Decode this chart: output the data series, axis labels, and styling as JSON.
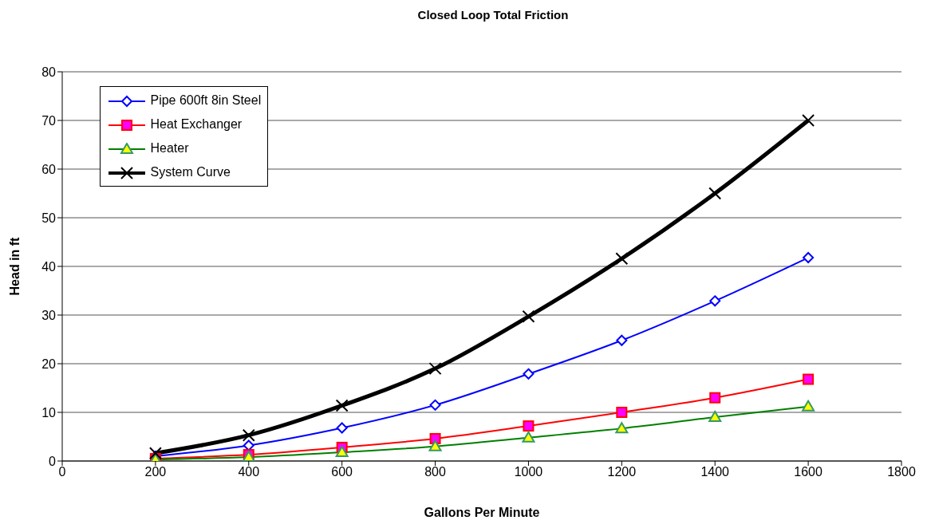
{
  "chart_data": {
    "type": "line",
    "title": "Closed Loop Total Friction",
    "xlabel": "Gallons Per Minute",
    "ylabel": "Head in ft",
    "x": [
      200,
      400,
      600,
      800,
      1000,
      1200,
      1400,
      1600
    ],
    "series": [
      {
        "name": "Pipe 600ft 8in Steel",
        "color": "#0000ff",
        "marker": "diamond",
        "values": [
          1.0,
          3.2,
          6.8,
          11.5,
          17.9,
          24.8,
          32.9,
          41.8
        ]
      },
      {
        "name": "Heat Exchanger",
        "color": "#ff0000",
        "marker": "square",
        "values": [
          0.5,
          1.3,
          2.8,
          4.6,
          7.2,
          10.0,
          13.0,
          16.8
        ]
      },
      {
        "name": "Heater",
        "color": "#008000",
        "marker": "triangle",
        "values": [
          0.3,
          0.8,
          1.8,
          3.0,
          4.8,
          6.7,
          9.0,
          11.2
        ]
      },
      {
        "name": "System Curve",
        "color": "#000000",
        "marker": "cross",
        "values": [
          1.6,
          5.3,
          11.4,
          19.0,
          29.7,
          41.6,
          55.0,
          70.0
        ]
      }
    ],
    "xlim": [
      0,
      1800
    ],
    "xticks": [
      0,
      200,
      400,
      600,
      800,
      1000,
      1200,
      1400,
      1600,
      1800
    ],
    "ylim": [
      0,
      80
    ],
    "yticks": [
      0,
      10,
      20,
      30,
      40,
      50,
      60,
      70,
      80
    ],
    "grid": "y",
    "legend": "top left",
    "line_style": "solid"
  }
}
